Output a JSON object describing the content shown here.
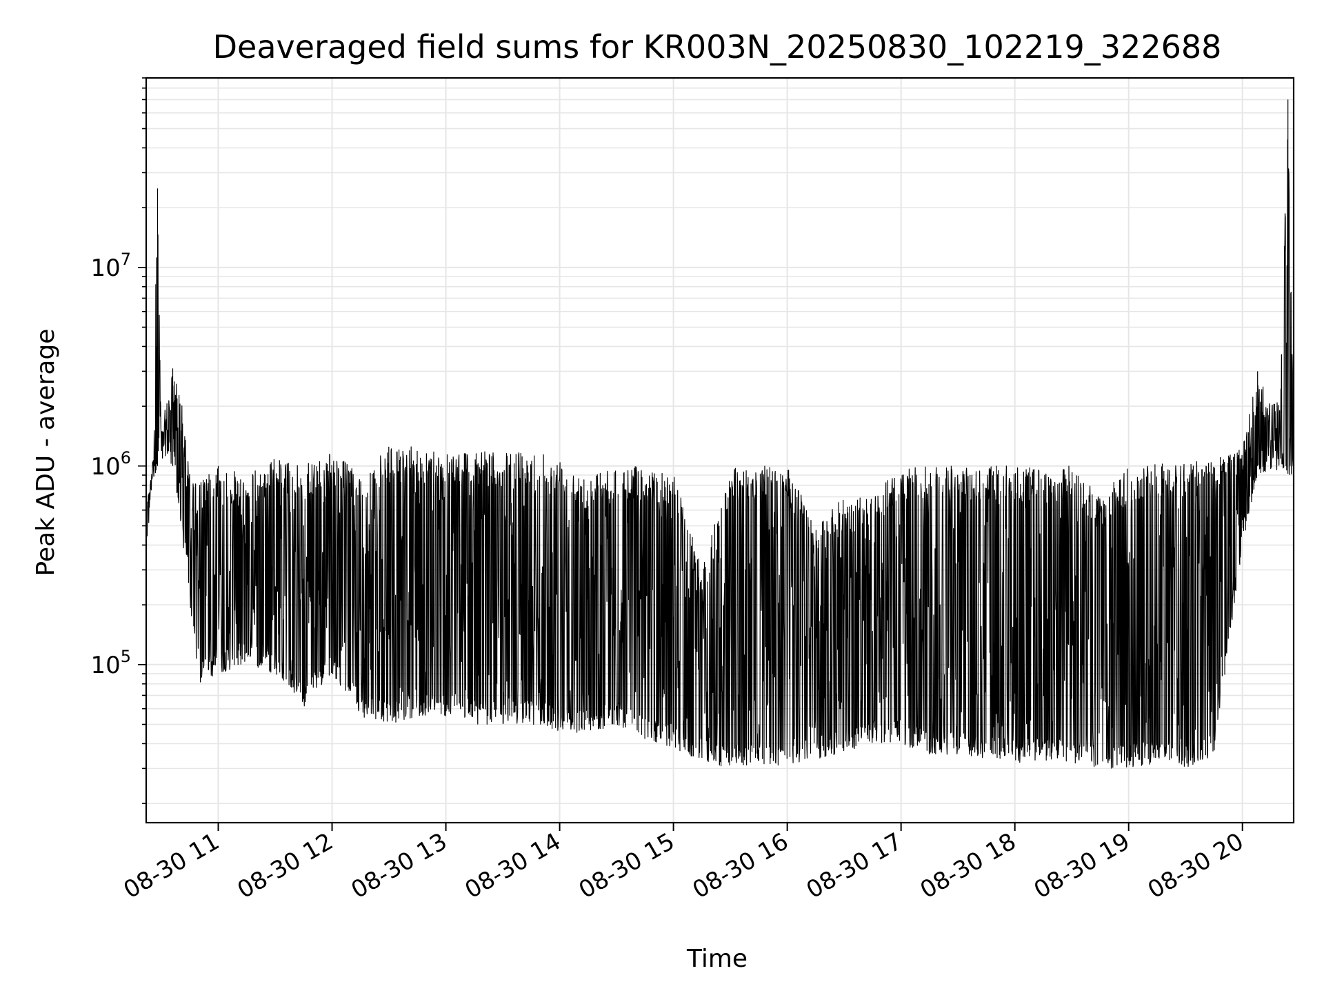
{
  "chart_data": {
    "type": "line",
    "title": "Deaveraged field sums for KR003N_20250830_102219_322688",
    "xlabel": "Time",
    "ylabel": "Peak ADU - average",
    "yscale": "log",
    "grid": true,
    "line_color": "#000000",
    "grid_color": "#e6e6e6",
    "xlim": [
      "2025-08-30 10:22",
      "2025-08-30 20:27"
    ],
    "ylim": [
      16000,
      90000000
    ],
    "x_ticks": [
      {
        "t": "2025-08-30 11:00",
        "label": "08-30 11"
      },
      {
        "t": "2025-08-30 12:00",
        "label": "08-30 12"
      },
      {
        "t": "2025-08-30 13:00",
        "label": "08-30 13"
      },
      {
        "t": "2025-08-30 14:00",
        "label": "08-30 14"
      },
      {
        "t": "2025-08-30 15:00",
        "label": "08-30 15"
      },
      {
        "t": "2025-08-30 16:00",
        "label": "08-30 16"
      },
      {
        "t": "2025-08-30 17:00",
        "label": "08-30 17"
      },
      {
        "t": "2025-08-30 18:00",
        "label": "08-30 18"
      },
      {
        "t": "2025-08-30 19:00",
        "label": "08-30 19"
      },
      {
        "t": "2025-08-30 20:00",
        "label": "08-30 20"
      }
    ],
    "y_ticks": [
      {
        "value": 100000,
        "base": "10",
        "exp": "5"
      },
      {
        "value": 1000000,
        "base": "10",
        "exp": "6"
      },
      {
        "value": 10000000,
        "base": "10",
        "exp": "7"
      }
    ],
    "series": [
      {
        "values_description_note": "",
        "x": [
          "2025-08-30 10:22",
          "2025-08-30 10:25",
          "2025-08-30 10:28",
          "2025-08-30 10:30",
          "2025-08-30 10:33",
          "2025-08-30 10:36",
          "2025-08-30 10:40",
          "2025-08-30 10:45",
          "2025-08-30 10:50",
          "2025-08-30 11:00",
          "2025-08-30 11:15",
          "2025-08-30 11:30",
          "2025-08-30 11:45",
          "2025-08-30 12:00",
          "2025-08-30 12:15",
          "2025-08-30 12:30",
          "2025-08-30 12:45",
          "2025-08-30 13:00",
          "2025-08-30 13:15",
          "2025-08-30 13:30",
          "2025-08-30 13:45",
          "2025-08-30 14:00",
          "2025-08-30 14:15",
          "2025-08-30 14:30",
          "2025-08-30 14:45",
          "2025-08-30 15:00",
          "2025-08-30 15:15",
          "2025-08-30 15:30",
          "2025-08-30 15:45",
          "2025-08-30 16:00",
          "2025-08-30 16:15",
          "2025-08-30 16:30",
          "2025-08-30 16:45",
          "2025-08-30 17:00",
          "2025-08-30 17:15",
          "2025-08-30 17:30",
          "2025-08-30 17:45",
          "2025-08-30 18:00",
          "2025-08-30 18:15",
          "2025-08-30 18:30",
          "2025-08-30 18:45",
          "2025-08-30 19:00",
          "2025-08-30 19:15",
          "2025-08-30 19:30",
          "2025-08-30 19:45",
          "2025-08-30 20:00",
          "2025-08-30 20:08",
          "2025-08-30 20:15",
          "2025-08-30 20:20",
          "2025-08-30 20:24",
          "2025-08-30 20:27"
        ],
        "upper": [
          600000,
          900000,
          25000000,
          1500000,
          2200000,
          3100000,
          2400000,
          900000,
          850000,
          1000000,
          900000,
          1100000,
          1000000,
          1200000,
          900000,
          1250000,
          1250000,
          1200000,
          1200000,
          1150000,
          1250000,
          1100000,
          900000,
          1000000,
          1000000,
          950000,
          300000,
          1000000,
          1000000,
          1000000,
          500000,
          700000,
          700000,
          1000000,
          1000000,
          1000000,
          1000000,
          1000000,
          1000000,
          1000000,
          700000,
          1000000,
          1050000,
          1050000,
          1100000,
          1300000,
          3000000,
          2000000,
          2300000,
          70000000,
          1500000
        ],
        "lower": [
          600000,
          800000,
          1000000,
          1200000,
          1100000,
          1000000,
          520000,
          200000,
          80000,
          90000,
          100000,
          90000,
          60000,
          90000,
          55000,
          50000,
          55000,
          55000,
          50000,
          50000,
          50000,
          45000,
          45000,
          50000,
          42000,
          38000,
          32000,
          30000,
          32000,
          30000,
          33000,
          36000,
          40000,
          40000,
          35000,
          35000,
          33000,
          32000,
          33000,
          32000,
          30000,
          30000,
          32000,
          30000,
          35000,
          400000,
          900000,
          950000,
          950000,
          900000,
          850000
        ]
      }
    ]
  }
}
